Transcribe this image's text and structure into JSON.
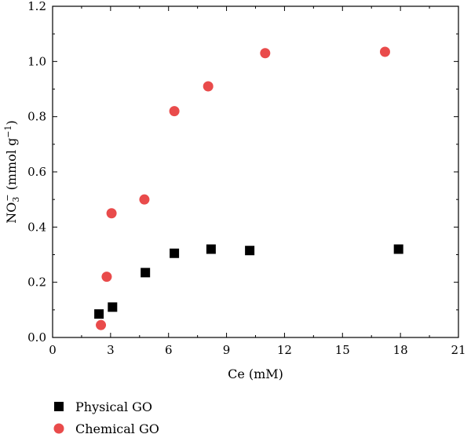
{
  "chart_data": {
    "type": "scatter",
    "title": "",
    "xlabel": "Ce (mM)",
    "ylabel": {
      "base": "NO",
      "sub": "3",
      "sup": "−",
      "unit_prefix": " (mmol g",
      "unit_sup": "−1",
      "unit_suffix": ")"
    },
    "xlim": [
      0,
      21
    ],
    "ylim": [
      0,
      1.2
    ],
    "x_ticks": [
      0,
      3,
      6,
      9,
      12,
      15,
      18,
      21
    ],
    "x_tick_labels": [
      "0",
      "3",
      "6",
      "9",
      "12",
      "15",
      "18",
      "21"
    ],
    "y_ticks": [
      0,
      0.2,
      0.4,
      0.6,
      0.8,
      1.0,
      1.2
    ],
    "y_tick_labels": [
      "0.0",
      "0.2",
      "0.4",
      "0.6",
      "0.8",
      "1.0",
      "1.2"
    ],
    "grid": false,
    "legend_placement": "bottom-left",
    "series": [
      {
        "name": "Physical GO",
        "marker": "square",
        "color": "#000000",
        "points": [
          {
            "x": 2.4,
            "y": 0.085
          },
          {
            "x": 3.1,
            "y": 0.11
          },
          {
            "x": 4.8,
            "y": 0.235
          },
          {
            "x": 6.3,
            "y": 0.305
          },
          {
            "x": 8.2,
            "y": 0.32
          },
          {
            "x": 10.2,
            "y": 0.315
          },
          {
            "x": 17.9,
            "y": 0.32
          }
        ]
      },
      {
        "name": "Chemical GO",
        "marker": "circle",
        "color": "#e94b4b",
        "points": [
          {
            "x": 2.5,
            "y": 0.045
          },
          {
            "x": 2.8,
            "y": 0.22
          },
          {
            "x": 3.05,
            "y": 0.45
          },
          {
            "x": 4.75,
            "y": 0.5
          },
          {
            "x": 6.3,
            "y": 0.82
          },
          {
            "x": 8.05,
            "y": 0.91
          },
          {
            "x": 11.0,
            "y": 1.03
          },
          {
            "x": 17.2,
            "y": 1.035
          }
        ]
      }
    ]
  }
}
